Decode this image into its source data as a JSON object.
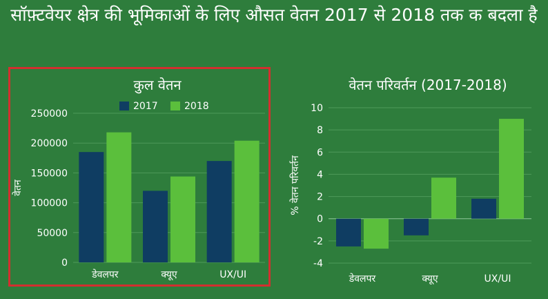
{
  "title": "सॉफ़्टवेयर क्षेत्र की भूमिकाओं के लिए औसत वेतन 2017 से 2018 तक क बदला है",
  "colors": {
    "background": "#2e7d3c",
    "series_2017": "#0f3d62",
    "series_2018": "#5bbf3c",
    "grid": "#4f9a5a",
    "highlight_border": "#d32f2f"
  },
  "chart_data": [
    {
      "type": "bar",
      "title": "कुल वेतन",
      "xlabel": "",
      "ylabel": "वेतन",
      "categories": [
        "डेवलपर",
        "क्यूए",
        "UX/UI"
      ],
      "series": [
        {
          "name": "2017",
          "values": [
            185000,
            120000,
            170000
          ]
        },
        {
          "name": "2018",
          "values": [
            218000,
            144000,
            204000
          ]
        }
      ],
      "ylim": [
        0,
        250000
      ],
      "yticks": [
        "0",
        "50000",
        "100000",
        "150000",
        "200000",
        "250000"
      ],
      "ytick_values": [
        0,
        50000,
        100000,
        150000,
        200000,
        250000
      ],
      "legend": "top",
      "grid": true,
      "highlighted": true
    },
    {
      "type": "bar",
      "title": "वेतन परिवर्तन (2017-2018)",
      "xlabel": "",
      "ylabel": "% वेतन परिवर्तन",
      "categories": [
        "डेवलपर",
        "क्यूए",
        "UX/UI"
      ],
      "series": [
        {
          "name": "2017",
          "values": [
            -2.5,
            -1.5,
            1.8
          ]
        },
        {
          "name": "2018",
          "values": [
            -2.7,
            3.7,
            9.0
          ]
        }
      ],
      "ylim": [
        -4,
        10
      ],
      "yticks": [
        "-4",
        "-2",
        "0",
        "2",
        "4",
        "6",
        "8",
        "10"
      ],
      "ytick_values": [
        -4,
        -2,
        0,
        2,
        4,
        6,
        8,
        10
      ],
      "legend": "none",
      "grid": true,
      "highlighted": false
    }
  ]
}
